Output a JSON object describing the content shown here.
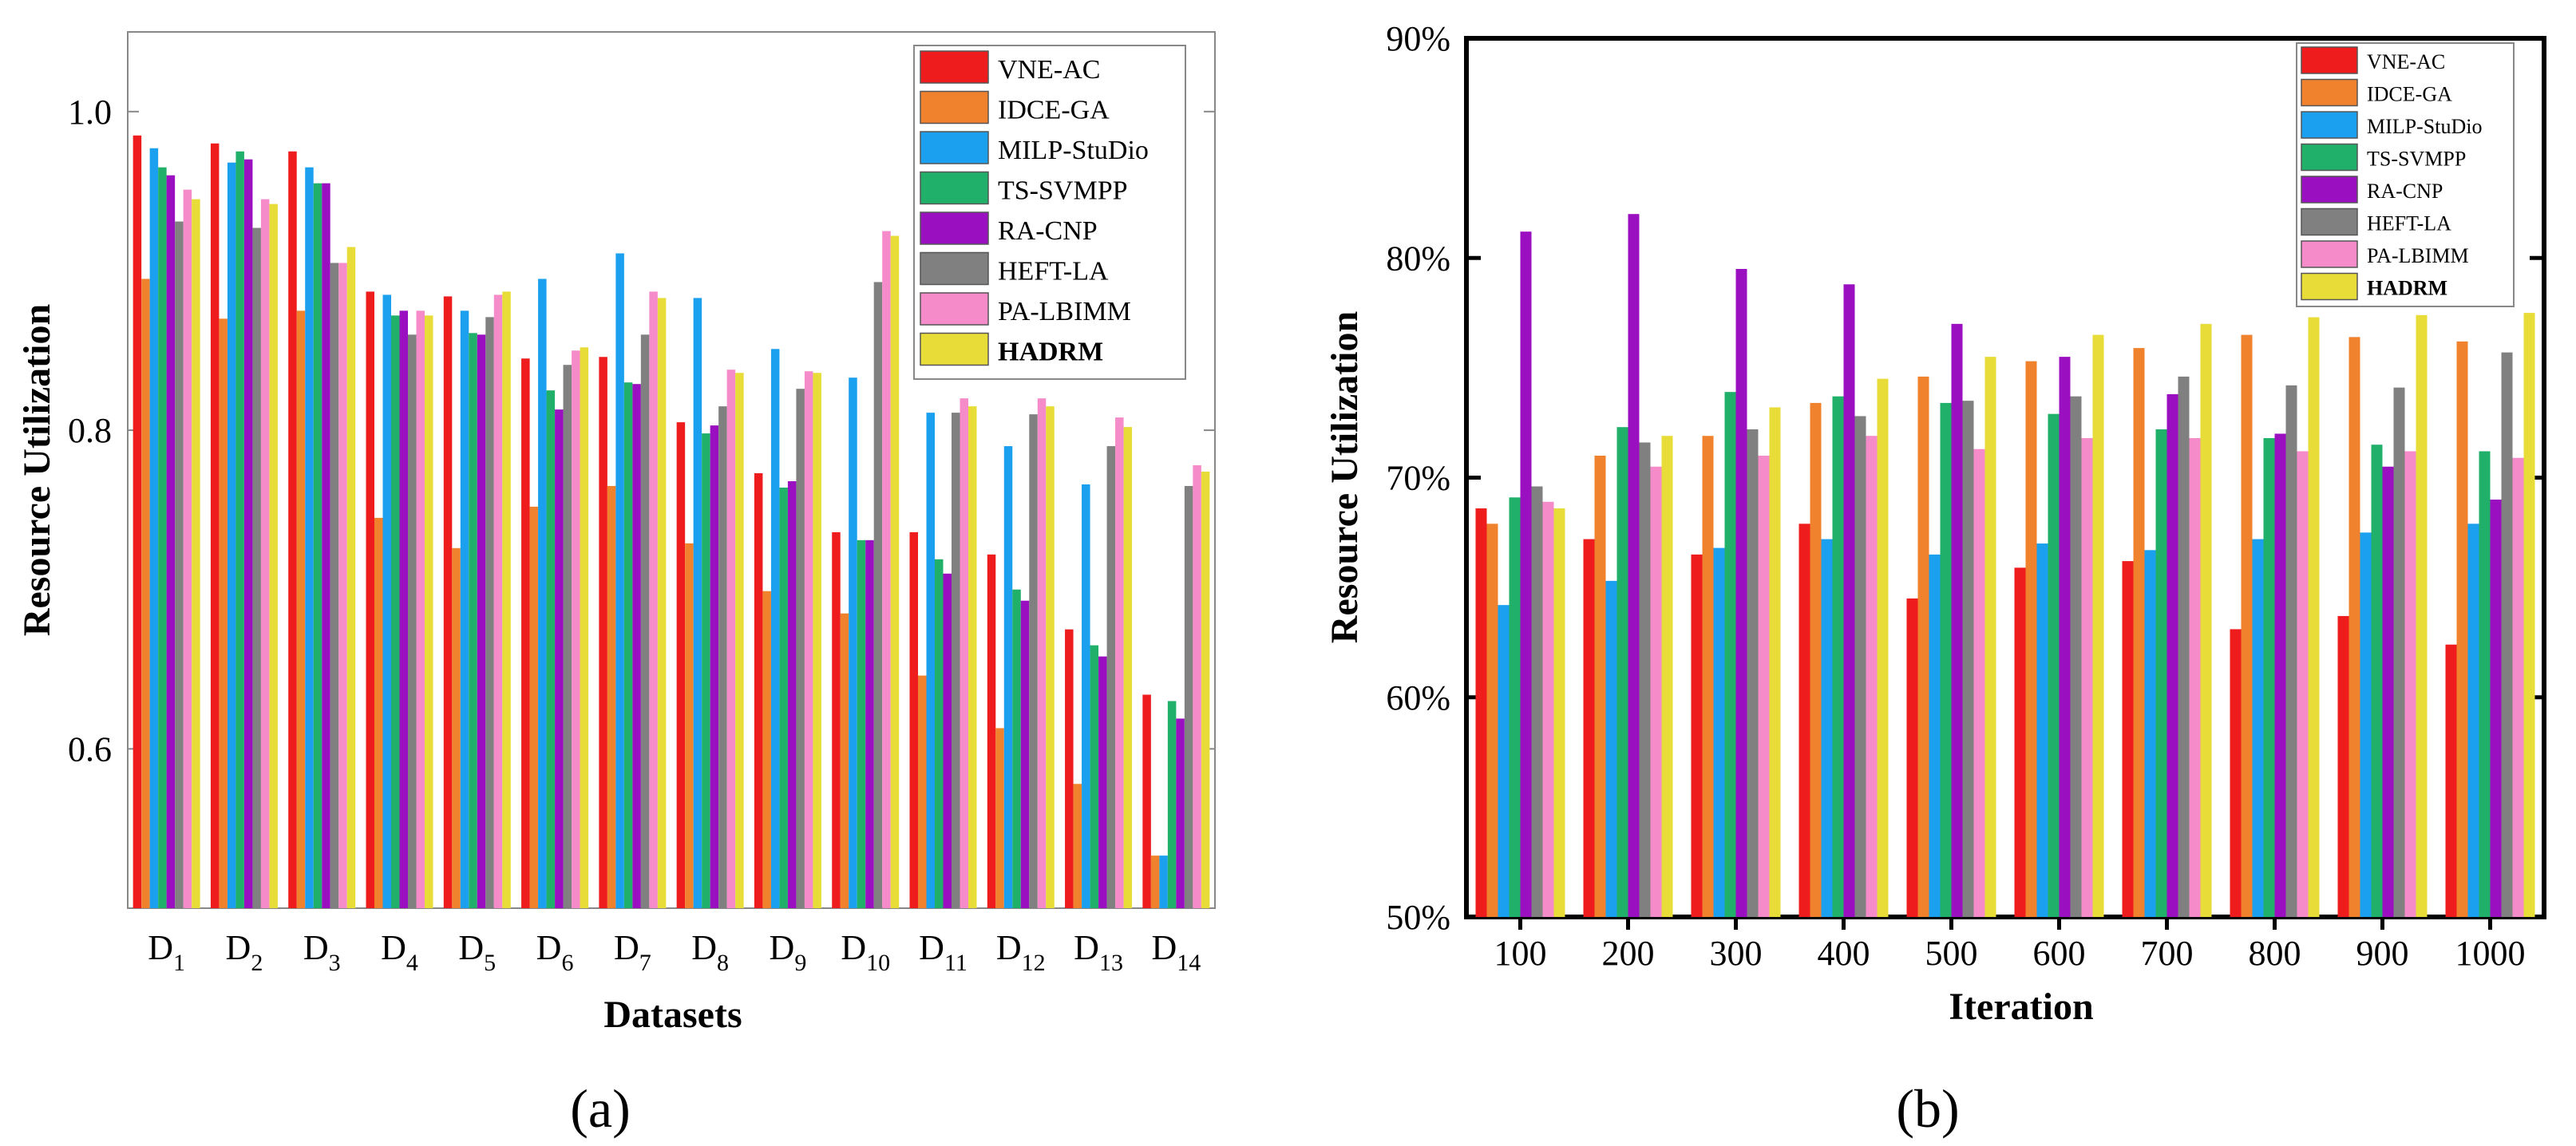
{
  "colors": {
    "VNE-AC": "#ee1c1c",
    "IDCE-GA": "#f0822d",
    "MILP-StuDio": "#1aa0ee",
    "TS-SVMPP": "#21b06a",
    "RA-CNP": "#9a10c0",
    "HEFT-LA": "#808080",
    "PA-LBIMM": "#f58bc8",
    "HADRM": "#e8dc38"
  },
  "chart_data": [
    {
      "panel_label": "(a)",
      "type": "bar",
      "title": "",
      "xlabel": "Datasets",
      "ylabel": "Resource Utilization",
      "ylim": [
        0.5,
        1.05
      ],
      "yticks": [
        "0.6",
        "0.8",
        "1.0"
      ],
      "ytick_values": [
        0.6,
        0.8,
        1.0
      ],
      "legend_position": "top-right",
      "categories": [
        {
          "base": "D",
          "sub": "1"
        },
        {
          "base": "D",
          "sub": "2"
        },
        {
          "base": "D",
          "sub": "3"
        },
        {
          "base": "D",
          "sub": "4"
        },
        {
          "base": "D",
          "sub": "5"
        },
        {
          "base": "D",
          "sub": "6"
        },
        {
          "base": "D",
          "sub": "7"
        },
        {
          "base": "D",
          "sub": "8"
        },
        {
          "base": "D",
          "sub": "9"
        },
        {
          "base": "D",
          "sub": "10"
        },
        {
          "base": "D",
          "sub": "11"
        },
        {
          "base": "D",
          "sub": "12"
        },
        {
          "base": "D",
          "sub": "13"
        },
        {
          "base": "D",
          "sub": "14"
        }
      ],
      "series": [
        {
          "name": "VNE-AC",
          "values": [
            0.985,
            0.98,
            0.975,
            0.887,
            0.884,
            0.845,
            0.846,
            0.805,
            0.773,
            0.736,
            0.736,
            0.722,
            0.675,
            0.634
          ]
        },
        {
          "name": "IDCE-GA",
          "values": [
            0.895,
            0.87,
            0.875,
            0.745,
            0.726,
            0.752,
            0.765,
            0.729,
            0.699,
            0.685,
            0.646,
            0.613,
            0.578,
            0.533
          ]
        },
        {
          "name": "MILP-StuDio",
          "values": [
            0.977,
            0.968,
            0.965,
            0.885,
            0.875,
            0.895,
            0.911,
            0.883,
            0.851,
            0.833,
            0.811,
            0.79,
            0.766,
            0.533
          ]
        },
        {
          "name": "TS-SVMPP",
          "values": [
            0.965,
            0.975,
            0.955,
            0.872,
            0.861,
            0.825,
            0.83,
            0.798,
            0.764,
            0.731,
            0.719,
            0.7,
            0.665,
            0.63
          ]
        },
        {
          "name": "RA-CNP",
          "values": [
            0.96,
            0.97,
            0.955,
            0.875,
            0.86,
            0.813,
            0.829,
            0.803,
            0.768,
            0.731,
            0.71,
            0.693,
            0.658,
            0.619
          ]
        },
        {
          "name": "HEFT-LA",
          "values": [
            0.931,
            0.927,
            0.905,
            0.86,
            0.871,
            0.841,
            0.86,
            0.815,
            0.826,
            0.893,
            0.811,
            0.81,
            0.79,
            0.765
          ]
        },
        {
          "name": "PA-LBIMM",
          "values": [
            0.951,
            0.945,
            0.905,
            0.875,
            0.885,
            0.85,
            0.887,
            0.838,
            0.837,
            0.925,
            0.82,
            0.82,
            0.808,
            0.778
          ]
        },
        {
          "name": "HADRM",
          "values": [
            0.945,
            0.942,
            0.915,
            0.872,
            0.887,
            0.852,
            0.883,
            0.836,
            0.836,
            0.922,
            0.815,
            0.815,
            0.802,
            0.774
          ]
        }
      ]
    },
    {
      "panel_label": "(b)",
      "type": "bar",
      "title": "",
      "xlabel": "Iteration",
      "ylabel": "Resource Utilization",
      "ylim": [
        50,
        90
      ],
      "yticks": [
        "50%",
        "60%",
        "70%",
        "80%",
        "90%"
      ],
      "ytick_values": [
        50,
        60,
        70,
        80,
        90
      ],
      "legend_position": "top-right",
      "categories": [
        "100",
        "200",
        "300",
        "400",
        "500",
        "600",
        "700",
        "800",
        "900",
        "1000"
      ],
      "series": [
        {
          "name": "VNE-AC",
          "values": [
            68.6,
            67.2,
            66.5,
            67.9,
            64.5,
            65.9,
            66.2,
            63.1,
            63.7,
            62.4
          ]
        },
        {
          "name": "IDCE-GA",
          "values": [
            67.9,
            71.0,
            71.9,
            73.4,
            74.6,
            75.3,
            75.9,
            76.5,
            76.4,
            76.2
          ]
        },
        {
          "name": "MILP-StuDio",
          "values": [
            64.2,
            65.3,
            66.8,
            67.2,
            66.5,
            67.0,
            66.7,
            67.2,
            67.5,
            67.9
          ]
        },
        {
          "name": "TS-SVMPP",
          "values": [
            69.1,
            72.3,
            73.9,
            73.7,
            73.4,
            72.9,
            72.2,
            71.8,
            71.5,
            71.2
          ]
        },
        {
          "name": "RA-CNP",
          "values": [
            81.2,
            82.0,
            79.5,
            78.8,
            77.0,
            75.5,
            73.8,
            72.0,
            70.5,
            69.0
          ]
        },
        {
          "name": "HEFT-LA",
          "values": [
            69.6,
            71.6,
            72.2,
            72.8,
            73.5,
            73.7,
            74.6,
            74.2,
            74.1,
            75.7
          ]
        },
        {
          "name": "PA-LBIMM",
          "values": [
            68.9,
            70.5,
            71.0,
            71.9,
            71.3,
            71.8,
            71.8,
            71.2,
            71.2,
            70.9
          ]
        },
        {
          "name": "HADRM",
          "values": [
            68.6,
            71.9,
            73.2,
            74.5,
            75.5,
            76.5,
            77.0,
            77.3,
            77.4,
            77.5
          ]
        }
      ]
    }
  ]
}
